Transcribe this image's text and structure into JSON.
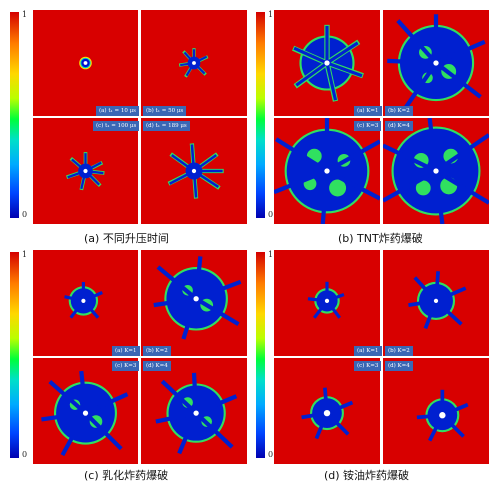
{
  "colorbar": {
    "max_label": "1",
    "min_label": "0"
  },
  "panels": [
    {
      "caption": "(a)  不同升压时间",
      "labels": [
        "(a) t₁ = 10 μs",
        "(b) t₁ = 50 μs",
        "(c) t₁ = 100 μs",
        "(d) t₁ = 189 μs"
      ]
    },
    {
      "caption": "(b)  TNT炸药爆破",
      "labels": [
        "(a) K=1",
        "(b) K=2",
        "(c) K=3",
        "(d) K=4"
      ]
    },
    {
      "caption": "(c)  乳化炸药爆破",
      "labels": [
        "(a) K=1",
        "(b) K=2",
        "(c) K=3",
        "(d) K=4"
      ]
    },
    {
      "caption": "(d)  铵油炸药爆破",
      "labels": [
        "(a) K=1",
        "(b) K=2",
        "(c) K=3",
        "(d) K=4"
      ]
    }
  ]
}
